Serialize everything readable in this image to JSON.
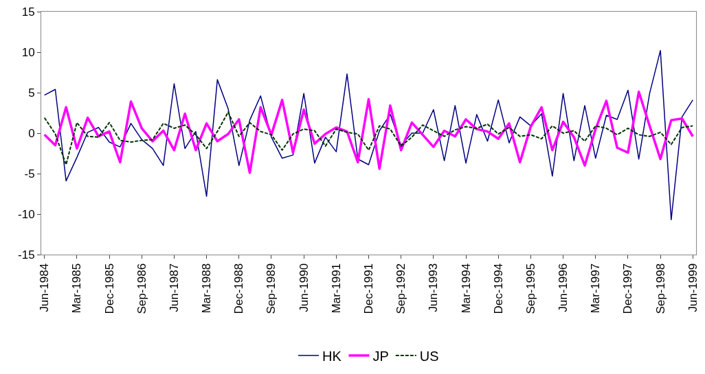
{
  "chart_data": {
    "type": "line",
    "categories": [
      "Jun-1984",
      null,
      null,
      "Mar-1985",
      null,
      null,
      "Dec-1985",
      null,
      null,
      "Sep-1986",
      null,
      null,
      "Jun-1987",
      null,
      null,
      "Mar-1988",
      null,
      null,
      "Dec-1988",
      null,
      null,
      "Sep-1989",
      null,
      null,
      "Jun-1990",
      null,
      null,
      "Mar-1991",
      null,
      null,
      "Dec-1991",
      null,
      null,
      "Sep-1992",
      null,
      null,
      "Jun-1993",
      null,
      null,
      "Mar-1994",
      null,
      null,
      "Dec-1994",
      null,
      null,
      "Sep-1995",
      null,
      null,
      "Jun-1996",
      null,
      null,
      "Mar-1997",
      null,
      null,
      "Dec-1997",
      null,
      null,
      "Sep-1998",
      null,
      null,
      "Jun-1999"
    ],
    "series": [
      {
        "name": "HK",
        "color": "#000080",
        "values": [
          4.7,
          5.4,
          -5.9,
          -3.0,
          0.1,
          0.7,
          -1.1,
          -1.7,
          1.2,
          -0.8,
          -1.9,
          -4.0,
          6.1,
          -1.9,
          0.2,
          -7.8,
          6.6,
          3.0,
          -4.0,
          1.6,
          4.6,
          -0.5,
          -3.1,
          -2.7,
          4.9,
          -3.7,
          -0.5,
          -2.3,
          7.3,
          -3.2,
          -3.9,
          0.3,
          2.3,
          -1.5,
          0,
          0,
          2.9,
          -3.4,
          3.4,
          -3.7,
          2.3,
          -1.0,
          4.1,
          -1.2,
          2.0,
          0.9,
          2.4,
          -5.3,
          4.9,
          -3.4,
          3.4,
          -3.1,
          2.2,
          1.7,
          5.3,
          -3.2,
          4.9,
          10.2,
          -10.7,
          2.0,
          4.1
        ]
      },
      {
        "name": "JP",
        "color": "#ff00ff",
        "values": [
          -0.2,
          -1.5,
          3.2,
          -1.9,
          1.9,
          -0.4,
          0.2,
          -3.6,
          3.9,
          0.6,
          -1.0,
          0.3,
          -2.1,
          2.4,
          -2.1,
          1.2,
          -1.0,
          -0.1,
          1.7,
          -4.9,
          3.2,
          -0.2,
          4.1,
          -2.4,
          2.9,
          -1.3,
          -0.1,
          0.7,
          0.2,
          -3.6,
          4.2,
          -4.4,
          3.4,
          -2.1,
          1.3,
          -0.2,
          -1.7,
          0.3,
          -0.4,
          1.7,
          0.5,
          0.2,
          -0.7,
          1.2,
          -3.6,
          0.8,
          3.2,
          -2.1,
          1.4,
          -0.5,
          -4.0,
          0.5,
          4.0,
          -1.8,
          -2.4,
          5.1,
          0.9,
          -3.2,
          1.6,
          1.8,
          -0.4
        ]
      },
      {
        "name": "US",
        "color": "#003300",
        "line_style": "dashed",
        "values": [
          1.9,
          -0.1,
          -3.9,
          1.3,
          -0.4,
          -0.5,
          1.3,
          -0.9,
          -1.1,
          -0.9,
          -0.8,
          1.2,
          0.6,
          1.0,
          -0.2,
          -1.9,
          0.2,
          2.6,
          -0.4,
          1.3,
          0.2,
          -0.2,
          -2.1,
          -0.1,
          0.5,
          0.3,
          -1.6,
          0.5,
          0.1,
          -0.1,
          -2.1,
          0.9,
          0.5,
          -1.6,
          -0.5,
          1.0,
          0.3,
          -0.4,
          0.4,
          0.8,
          0.6,
          1.1,
          -0.1,
          0.7,
          -0.4,
          -0.2,
          -0.7,
          0.9,
          0,
          0.3,
          -1.0,
          0.9,
          0.6,
          -0.2,
          0.6,
          -0.2,
          -0.4,
          0.1,
          -1.4,
          0.7,
          0.9
        ]
      }
    ],
    "ylim": [
      -15,
      15
    ],
    "yticks": [
      -15,
      -10,
      -5,
      0,
      5,
      10,
      15
    ],
    "legend": "bottom"
  }
}
